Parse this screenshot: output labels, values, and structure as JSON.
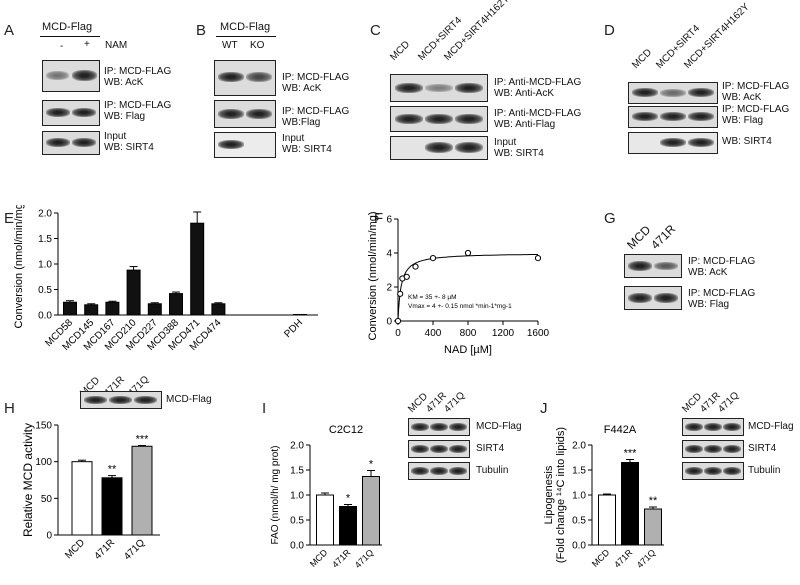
{
  "panels": {
    "A": {
      "letter": "A",
      "header": "MCD-Flag",
      "nam_label": "NAM",
      "minus": "-",
      "plus": "+",
      "blots": [
        {
          "l1": "IP: MCD-FLAG",
          "l2": "WB: AcK"
        },
        {
          "l1": "IP: MCD-FLAG",
          "l2": "WB: Flag"
        },
        {
          "l1": "Input",
          "l2": "WB: SIRT4"
        }
      ]
    },
    "B": {
      "letter": "B",
      "header": "MCD-Flag",
      "wt": "WT",
      "ko": "KO",
      "blots": [
        {
          "l1": "IP: MCD-FLAG",
          "l2": "WB: AcK"
        },
        {
          "l1": "IP: MCD-FLAG",
          "l2": "WB:Flag"
        },
        {
          "l1": "Input",
          "l2": "WB: SIRT4"
        }
      ]
    },
    "C": {
      "letter": "C",
      "lanes": [
        "MCD",
        "MCD+SIRT4",
        "MCD+SIRT4H162Y"
      ],
      "blots": [
        {
          "l1": "IP: Anti-MCD-FLAG",
          "l2": "WB: Anti-AcK"
        },
        {
          "l1": "IP: Anti-MCD-FLAG",
          "l2": "WB: Anti-Flag"
        },
        {
          "l1": "Input",
          "l2": "WB: SIRT4"
        }
      ]
    },
    "D": {
      "letter": "D",
      "lanes": [
        "MCD",
        "MCD+SIRT4",
        "MCD+SIRT4H162Y"
      ],
      "blots": [
        {
          "l1": "IP: MCD-FLAG",
          "l2": "WB: AcK"
        },
        {
          "l1": "IP: MCD-FLAG",
          "l2": "WB: Flag"
        },
        {
          "l1": "WB: SIRT4",
          "l2": ""
        }
      ]
    },
    "G": {
      "letter": "G",
      "lanes": [
        "MCD",
        "471R"
      ],
      "blots": [
        {
          "l1": "IP: MCD-FLAG",
          "l2": "WB: AcK"
        },
        {
          "l1": "IP: MCD-FLAG",
          "l2": "WB: Flag"
        }
      ]
    },
    "E": {
      "letter": "E"
    },
    "F": {
      "letter": "F"
    },
    "H": {
      "letter": "H",
      "blot_label": "MCD-Flag",
      "lanes": [
        "MCD",
        "471R",
        "471Q"
      ]
    },
    "I": {
      "letter": "I",
      "blot_labels": [
        "MCD-Flag",
        "SIRT4",
        "Tubulin"
      ],
      "lanes": [
        "MCD",
        "471R",
        "471Q"
      ]
    },
    "J": {
      "letter": "J",
      "blot_labels": [
        "MCD-Flag",
        "SIRT4",
        "Tubulin"
      ],
      "lanes": [
        "MCD",
        "471R",
        "471Q"
      ]
    }
  },
  "chart_data": [
    {
      "id": "E",
      "type": "bar",
      "categories": [
        "MCD58",
        "MCD145",
        "MCD167",
        "MCD210",
        "MCD227",
        "MCD388",
        "MCD471",
        "MCD474",
        "PDH"
      ],
      "values": [
        0.25,
        0.2,
        0.25,
        0.88,
        0.22,
        0.42,
        1.8,
        0.22,
        0.01
      ],
      "errors": [
        0.03,
        0.02,
        0.02,
        0.07,
        0.02,
        0.03,
        0.22,
        0.02,
        0.0
      ],
      "ylabel": "Conversion (nmol/min/mg)",
      "ylim": [
        0,
        2.0
      ],
      "yticks": [
        "0.0",
        "0.5",
        "1.0",
        "1.5",
        "2.0"
      ]
    },
    {
      "id": "F",
      "type": "scatter",
      "x": [
        0,
        25,
        50,
        100,
        200,
        400,
        800,
        1600
      ],
      "y": [
        0.0,
        1.6,
        2.5,
        2.6,
        3.2,
        3.7,
        4.0,
        3.7
      ],
      "xlabel": "NAD [µM]",
      "ylabel": "Conversion (nmol/min/mg)",
      "xlim": [
        0,
        1600
      ],
      "ylim": [
        0,
        6
      ],
      "xticks": [
        "0",
        "400",
        "800",
        "1200",
        "1600"
      ],
      "yticks": [
        "0",
        "2",
        "4",
        "6"
      ],
      "annotation1": "KM = 35 +- 8 µM",
      "annotation2": "Vmax = 4 +- 0.15 nmol *min-1*mg-1",
      "fit": {
        "vmax": 4,
        "km": 35
      }
    },
    {
      "id": "H",
      "type": "bar",
      "categories": [
        "MCD",
        "471R",
        "471Q"
      ],
      "values": [
        100,
        78,
        121
      ],
      "errors": [
        2,
        3,
        1
      ],
      "sig": [
        "",
        "**",
        "***"
      ],
      "fills": [
        "#ffffff",
        "#000000",
        "#b0b0b0"
      ],
      "ylabel": "Relative MCD activity",
      "ylim": [
        0,
        150
      ],
      "yticks": [
        "0",
        "50",
        "100",
        "150"
      ]
    },
    {
      "id": "I",
      "type": "bar",
      "title": "C2C12",
      "categories": [
        "MCD",
        "471R",
        "471Q"
      ],
      "values": [
        1.0,
        0.77,
        1.37
      ],
      "errors": [
        0.04,
        0.04,
        0.12
      ],
      "sig": [
        "",
        "*",
        "*"
      ],
      "fills": [
        "#ffffff",
        "#000000",
        "#b0b0b0"
      ],
      "ylabel": "FAO (nmol/h/ mg prot)",
      "ylim": [
        0,
        2.0
      ],
      "yticks": [
        "0.0",
        "0.5",
        "1.0",
        "1.5",
        "2.0"
      ]
    },
    {
      "id": "J",
      "type": "bar",
      "title": "F442A",
      "categories": [
        "MCD",
        "471R",
        "471Q"
      ],
      "values": [
        1.0,
        1.65,
        0.72
      ],
      "errors": [
        0.02,
        0.06,
        0.04
      ],
      "sig": [
        "",
        "***",
        "**"
      ],
      "fills": [
        "#ffffff",
        "#000000",
        "#b0b0b0"
      ],
      "ylabel": "Lipogenesis",
      "ylabel2": "(Fold change ¹⁴C into lipids)",
      "ylim": [
        0,
        2.0
      ],
      "yticks": [
        "0.0",
        "0.5",
        "1.0",
        "1.5",
        "2.0"
      ]
    }
  ]
}
